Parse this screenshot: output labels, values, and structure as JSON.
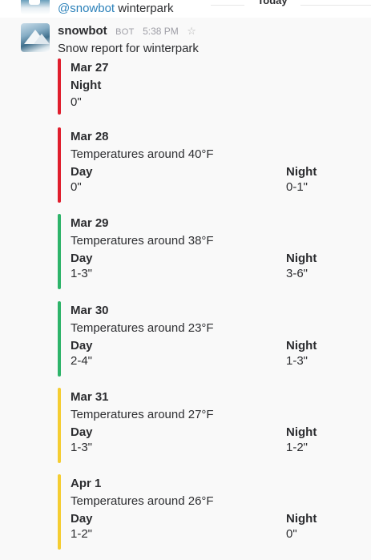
{
  "previous_message": {
    "mention": "@snowbot",
    "text": "winterpark"
  },
  "day_divider": "Today",
  "message": {
    "sender": "snowbot",
    "badge": "BOT",
    "time": "5:38 PM",
    "star_icon": "star-icon",
    "text": "Snow report for winterpark"
  },
  "colors": {
    "red": "#e01e2d",
    "green": "#2eb46a",
    "yellow": "#f5cd32",
    "mention": "#2a80b9"
  },
  "reports": [
    {
      "date": "Mar 27",
      "color": "red",
      "summary": "",
      "day_label": "",
      "day_value": "",
      "night_label": "Night",
      "night_value": "0\""
    },
    {
      "date": "Mar 28",
      "color": "red",
      "summary": "Temperatures around 40°F",
      "day_label": "Day",
      "day_value": "0\"",
      "night_label": "Night",
      "night_value": "0-1\""
    },
    {
      "date": "Mar 29",
      "color": "green",
      "summary": "Temperatures around 38°F",
      "day_label": "Day",
      "day_value": "1-3\"",
      "night_label": "Night",
      "night_value": "3-6\""
    },
    {
      "date": "Mar 30",
      "color": "green",
      "summary": "Temperatures around 23°F",
      "day_label": "Day",
      "day_value": "2-4\"",
      "night_label": "Night",
      "night_value": "1-3\""
    },
    {
      "date": "Mar 31",
      "color": "yellow",
      "summary": "Temperatures around 27°F",
      "day_label": "Day",
      "day_value": "1-3\"",
      "night_label": "Night",
      "night_value": "1-2\""
    },
    {
      "date": "Apr 1",
      "color": "yellow",
      "summary": "Temperatures around 26°F",
      "day_label": "Day",
      "day_value": "1-2\"",
      "night_label": "Night",
      "night_value": "0\""
    }
  ]
}
